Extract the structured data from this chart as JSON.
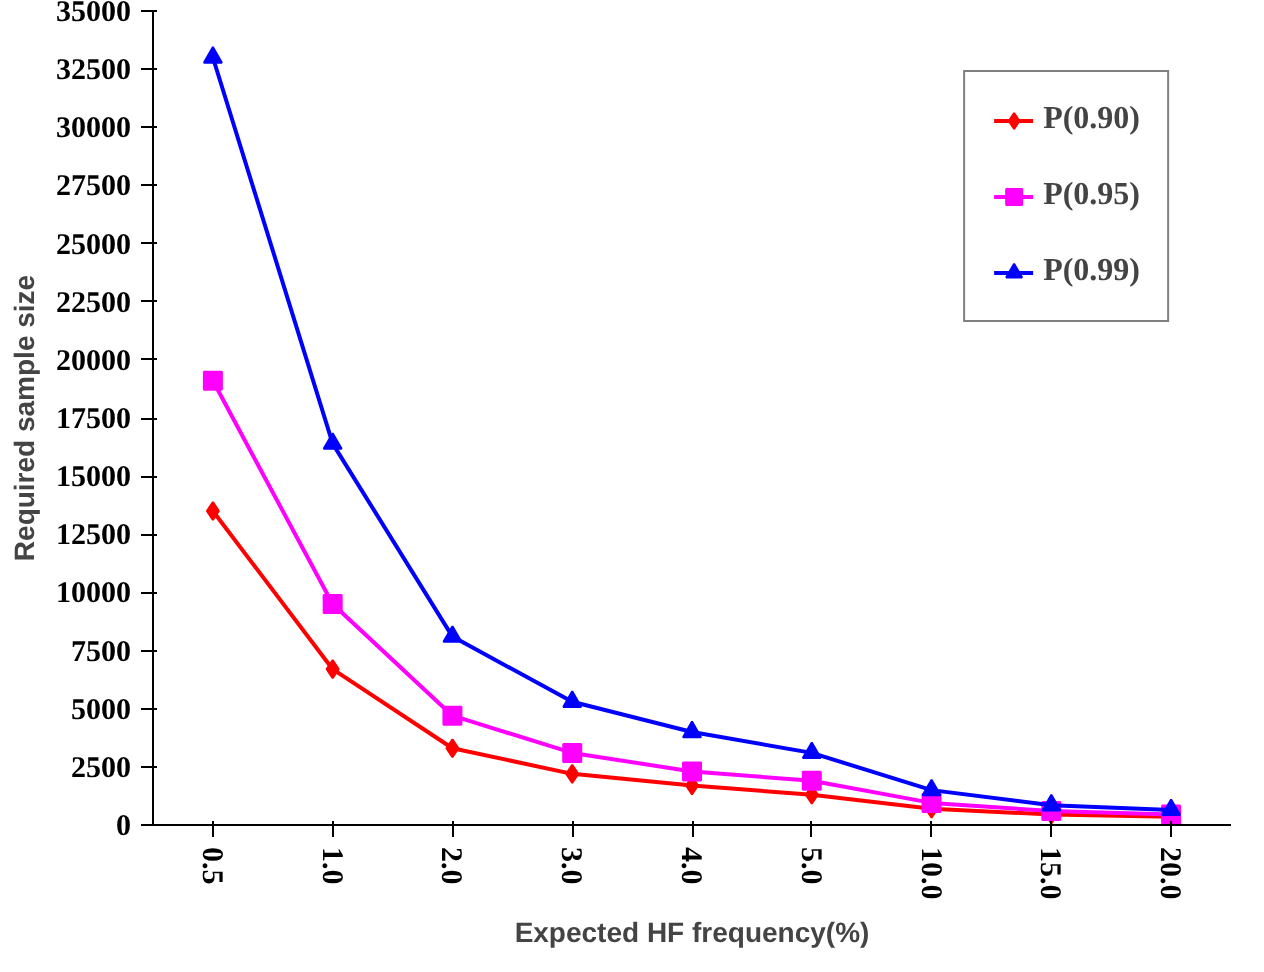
{
  "chart_data": {
    "type": "line",
    "xlabel": "Expected HF frequency(%)",
    "ylabel": "Required sample size",
    "categories": [
      "0.5",
      "1.0",
      "2.0",
      "3.0",
      "4.0",
      "5.0",
      "10.0",
      "15.0",
      "20.0"
    ],
    "ylim": [
      0,
      35000
    ],
    "yticks": [
      0,
      2500,
      5000,
      7500,
      10000,
      12500,
      15000,
      17500,
      20000,
      22500,
      25000,
      27500,
      30000,
      32500,
      35000
    ],
    "grid": false,
    "legend": "top right",
    "series": [
      {
        "name": "P(0.90)",
        "color": "#ff0000",
        "marker": "diamond",
        "values": [
          13500,
          6700,
          3300,
          2200,
          1700,
          1300,
          700,
          450,
          350
        ]
      },
      {
        "name": "P(0.95)",
        "color": "#ff00ff",
        "marker": "square",
        "values": [
          19100,
          9500,
          4700,
          3100,
          2300,
          1900,
          950,
          600,
          450
        ]
      },
      {
        "name": "P(0.99)",
        "color": "#0000ff",
        "marker": "triangle",
        "values": [
          33000,
          16400,
          8100,
          5300,
          4000,
          3100,
          1500,
          850,
          650
        ]
      }
    ]
  }
}
